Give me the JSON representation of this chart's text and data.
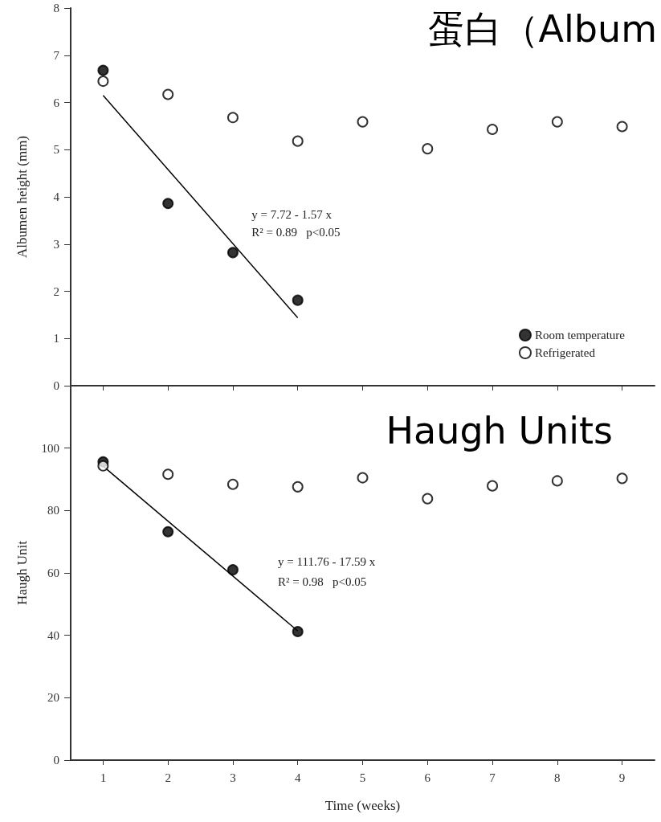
{
  "chart_data": [
    {
      "type": "scatter",
      "title": "蛋白（Album",
      "ylabel": "Albumen height (mm)",
      "xlim": [
        0.5,
        9.5
      ],
      "xticks": [
        1,
        2,
        3,
        4,
        5,
        6,
        7,
        8,
        9
      ],
      "ylim": [
        0,
        8
      ],
      "yticks": [
        0,
        1,
        2,
        3,
        4,
        5,
        6,
        7,
        8
      ],
      "tick_labels": "y",
      "legend": "bottom right",
      "marker": "circle",
      "annotations": [
        "y = 7.72 - 1.57 x",
        "R² = 0.89   p<0.05"
      ],
      "series": [
        {
          "name": "Room temperature",
          "color": "#000000",
          "x": [
            1,
            2,
            3,
            4
          ],
          "values": [
            6.68,
            3.86,
            2.82,
            1.81
          ]
        },
        {
          "name": "Refrigerated",
          "color": "#ffffff",
          "x": [
            1,
            2,
            3,
            4,
            5,
            6,
            7,
            8,
            9
          ],
          "values": [
            6.45,
            6.17,
            5.68,
            5.18,
            5.59,
            5.02,
            5.43,
            5.59,
            5.49
          ]
        },
        {
          "type": "line",
          "color": "#000000",
          "marker": "none",
          "x": [
            1,
            4
          ],
          "values": [
            6.15,
            1.44
          ]
        }
      ]
    },
    {
      "type": "scatter",
      "title": "Haugh Units",
      "xlabel": "Time (weeks)",
      "ylabel": "Haugh Unit",
      "xlim": [
        0.5,
        9.5
      ],
      "xticks": [
        1,
        2,
        3,
        4,
        5,
        6,
        7,
        8,
        9
      ],
      "ylim": [
        0,
        120
      ],
      "yticks": [
        0,
        20,
        40,
        60,
        80,
        100
      ],
      "marker": "circle",
      "annotations": [
        "y = 111.76 - 17.59 x",
        "R² = 0.98   p<0.05"
      ],
      "series": [
        {
          "color": "#000000",
          "x": [
            1,
            2,
            3,
            4
          ],
          "values": [
            95.6,
            73.2,
            61.0,
            41.2
          ]
        },
        {
          "color": "#ffffff",
          "x": [
            1,
            2,
            3,
            4,
            5,
            6,
            7,
            8,
            9
          ],
          "values": [
            94.3,
            91.6,
            88.4,
            87.6,
            90.5,
            83.8,
            87.9,
            89.5,
            90.3
          ]
        },
        {
          "type": "line",
          "color": "#000000",
          "marker": "none",
          "x": [
            1,
            4
          ],
          "values": [
            94.2,
            41.4
          ]
        }
      ]
    }
  ]
}
